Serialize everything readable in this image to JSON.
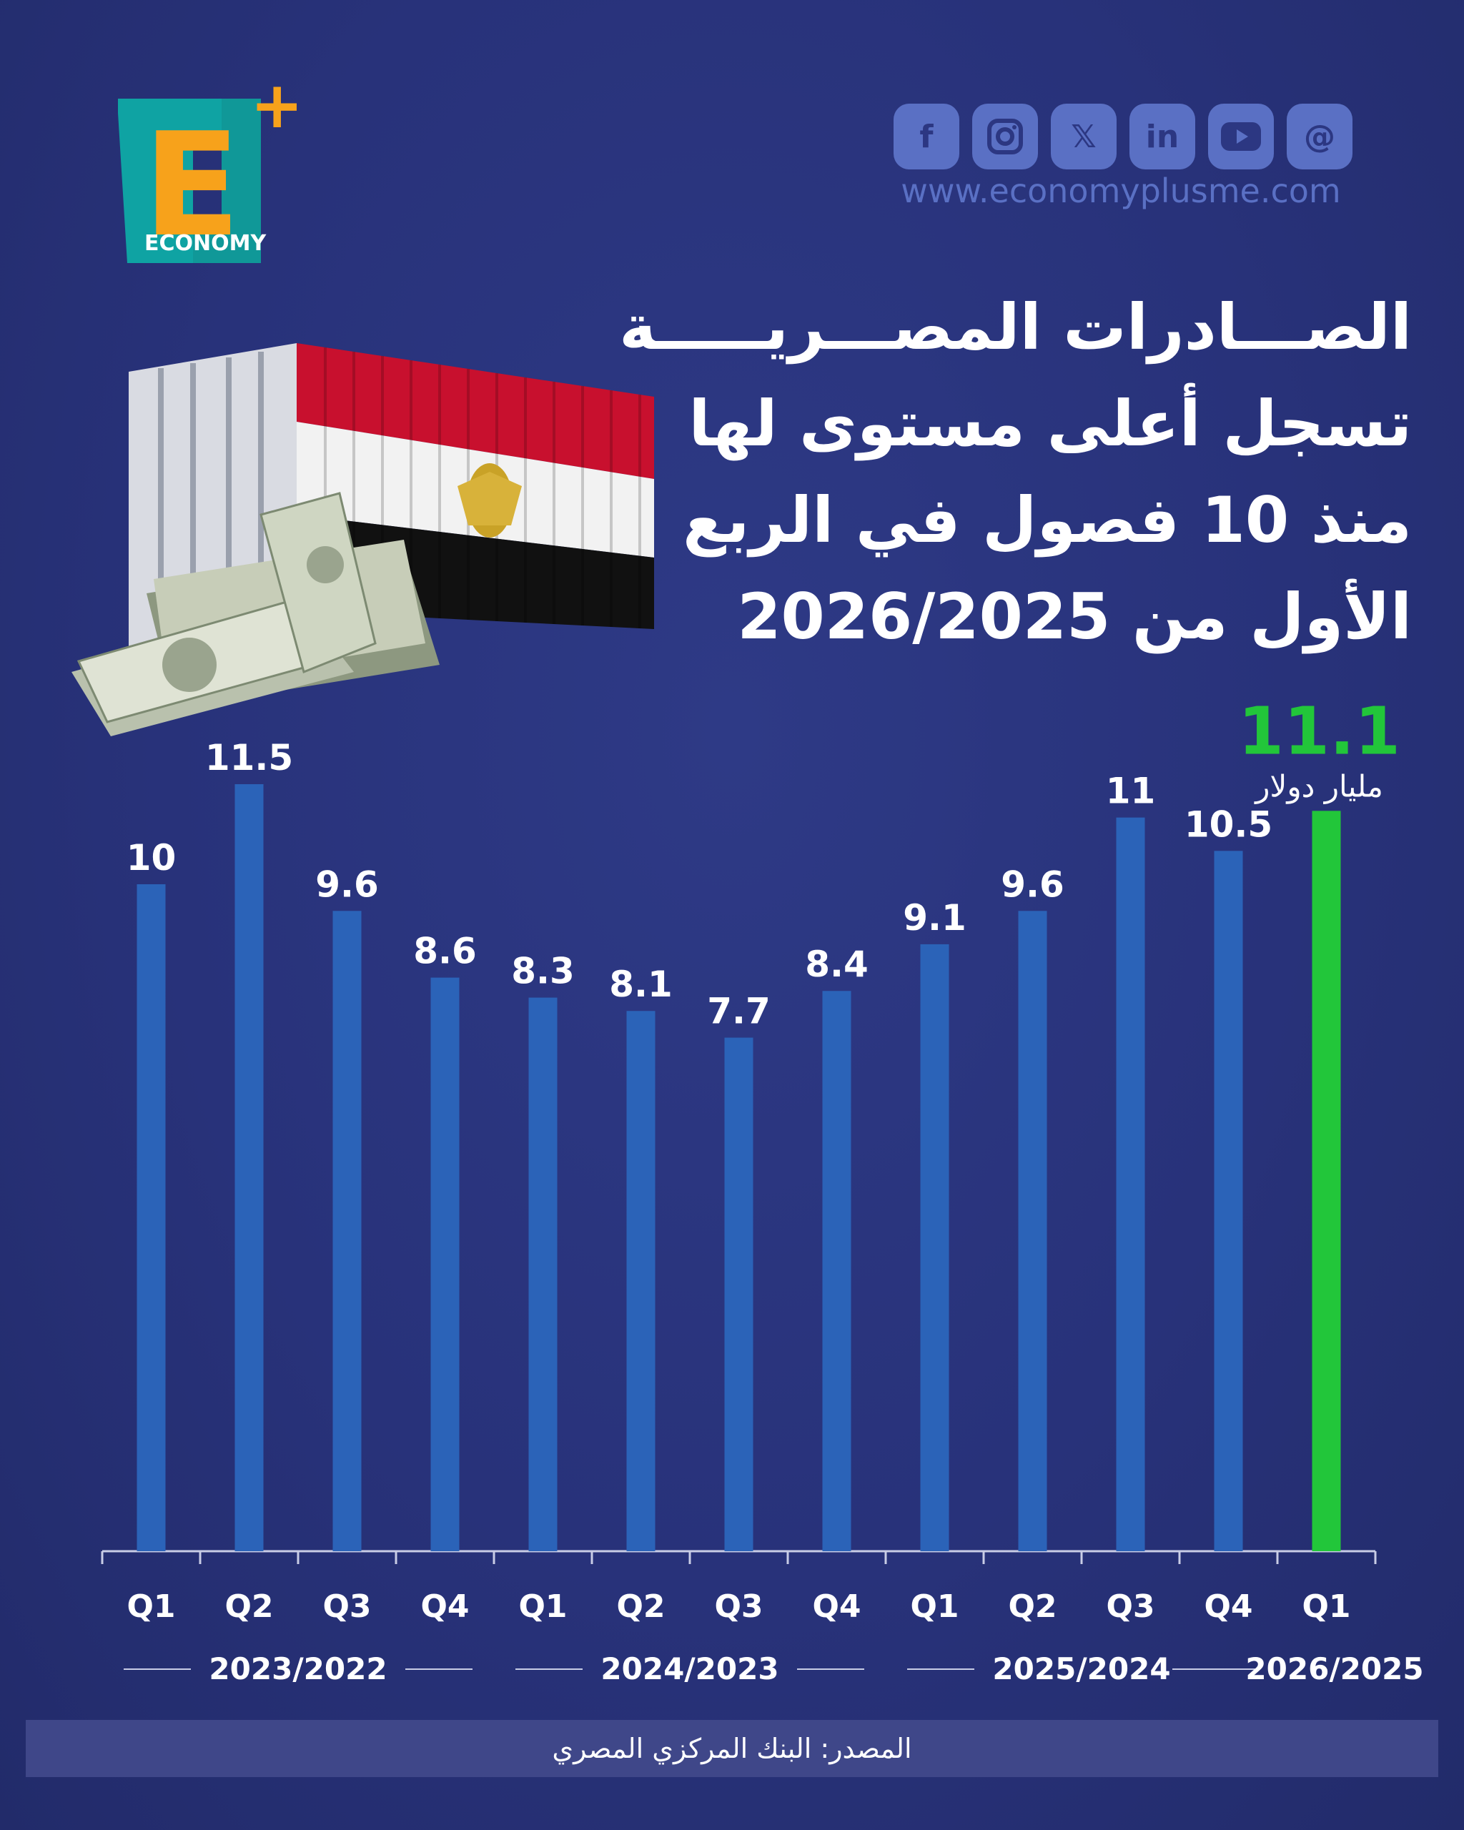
{
  "brand": {
    "logo_letter": "E",
    "logo_plus": "+",
    "logo_word": "ECONOMY",
    "website": "www.economyplusme.com"
  },
  "social_icons": [
    "facebook-icon",
    "instagram-icon",
    "x-icon",
    "linkedin-icon",
    "youtube-icon",
    "threads-icon"
  ],
  "title": {
    "line1": "الصـــادرات المصـــريـــــة",
    "line2": "تسجل أعلى مستوى لها",
    "line3": "منذ 10 فصول في الربع",
    "line4": "الأول من 2026/2025"
  },
  "source": "المصدر: البنك المركزي المصري",
  "colors": {
    "background": "#28327a",
    "bar": "#2b63b8",
    "highlight": "#22c63a",
    "logo_teal": "#0fa3a3",
    "logo_orange": "#f7a21b"
  },
  "chart_data": {
    "type": "bar",
    "categories": [
      "Q1",
      "Q2",
      "Q3",
      "Q4",
      "Q1",
      "Q2",
      "Q3",
      "Q4",
      "Q1",
      "Q2",
      "Q3",
      "Q4",
      "Q1"
    ],
    "values": [
      10,
      11.5,
      9.6,
      8.6,
      8.3,
      8.1,
      7.7,
      8.4,
      9.1,
      9.6,
      11,
      10.5,
      11.1
    ],
    "value_labels": [
      "10",
      "11.5",
      "9.6",
      "8.6",
      "8.3",
      "8.1",
      "7.7",
      "8.4",
      "9.1",
      "9.6",
      "11",
      "10.5",
      "11.1"
    ],
    "highlight_index": 12,
    "highlight_unit": "مليار دولار",
    "groups": [
      {
        "label": "2023/2022",
        "count": 4
      },
      {
        "label": "2024/2023",
        "count": 4
      },
      {
        "label": "2025/2024",
        "count": 4
      },
      {
        "label": "2026/2025",
        "count": 1
      }
    ],
    "ylim": [
      0,
      11.5
    ],
    "grid": false
  }
}
